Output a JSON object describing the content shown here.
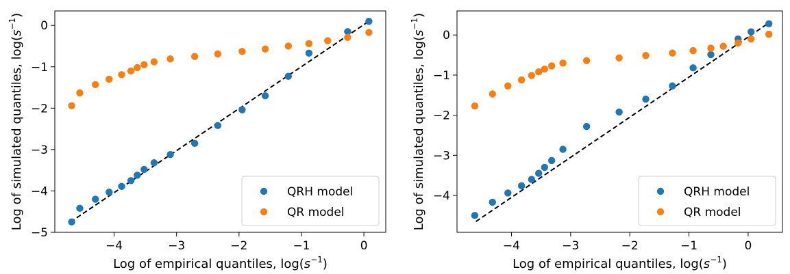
{
  "chart_data": [
    {
      "type": "scatter",
      "xlabel": "Log of empirical quantiles, log(s⁻¹)",
      "ylabel": "Log of simulated quantiles, log(s⁻¹)",
      "xlim": [
        -4.95,
        0.35
      ],
      "ylim": [
        -5.0,
        0.35
      ],
      "xticks": [
        -4,
        -3,
        -2,
        -1,
        0
      ],
      "yticks": [
        -5,
        -4,
        -3,
        -2,
        -1,
        0
      ],
      "grid": false,
      "legend_position": "bottom-right",
      "reference_line": {
        "style": "dashed",
        "color": "#000000",
        "x": [
          -4.7,
          0.08
        ],
        "y": [
          -4.75,
          0.1
        ]
      },
      "series": [
        {
          "name": "QRH model",
          "color": "#1f77b4",
          "x": [
            -4.68,
            -4.55,
            -4.3,
            -4.08,
            -3.88,
            -3.73,
            -3.63,
            -3.52,
            -3.36,
            -3.1,
            -2.71,
            -2.34,
            -1.95,
            -1.58,
            -1.21,
            -0.88,
            -0.26,
            0.08
          ],
          "y": [
            -4.75,
            -4.42,
            -4.2,
            -4.03,
            -3.89,
            -3.75,
            -3.62,
            -3.48,
            -3.32,
            -3.12,
            -2.85,
            -2.42,
            -2.04,
            -1.7,
            -1.23,
            -0.67,
            -0.15,
            0.1
          ]
        },
        {
          "name": "QR model",
          "color": "#ff7f0e",
          "x": [
            -4.68,
            -4.55,
            -4.3,
            -4.08,
            -3.88,
            -3.73,
            -3.63,
            -3.52,
            -3.36,
            -3.1,
            -2.71,
            -2.34,
            -1.95,
            -1.58,
            -1.21,
            -0.88,
            -0.58,
            -0.26,
            0.08
          ],
          "y": [
            -1.94,
            -1.63,
            -1.43,
            -1.3,
            -1.19,
            -1.1,
            -1.02,
            -0.95,
            -0.88,
            -0.81,
            -0.75,
            -0.69,
            -0.63,
            -0.57,
            -0.5,
            -0.44,
            -0.37,
            -0.29,
            -0.17
          ]
        }
      ]
    },
    {
      "type": "scatter",
      "xlabel": "Log of empirical quantiles, log(s⁻¹)",
      "ylabel": "Log of simulated quantiles, log(s⁻¹)",
      "xlim": [
        -4.92,
        0.58
      ],
      "ylim": [
        -4.92,
        0.6
      ],
      "xticks": [
        -4,
        -3,
        -2,
        -1,
        0
      ],
      "yticks": [
        -4,
        -3,
        -2,
        -1,
        0
      ],
      "grid": false,
      "legend_position": "bottom-right",
      "reference_line": {
        "style": "dashed",
        "color": "#000000",
        "x": [
          -4.6,
          0.35
        ],
        "y": [
          -4.65,
          0.3
        ]
      },
      "series": [
        {
          "name": "QRH model",
          "color": "#1f77b4",
          "x": [
            -4.62,
            -4.32,
            -4.06,
            -3.83,
            -3.66,
            -3.54,
            -3.44,
            -3.32,
            -3.13,
            -2.73,
            -2.18,
            -1.73,
            -1.28,
            -0.93,
            -0.63,
            -0.17,
            0.05,
            0.35
          ],
          "y": [
            -4.5,
            -4.17,
            -3.94,
            -3.76,
            -3.6,
            -3.45,
            -3.3,
            -3.13,
            -2.85,
            -2.28,
            -1.92,
            -1.6,
            -1.27,
            -0.82,
            -0.49,
            -0.1,
            0.08,
            0.28
          ]
        },
        {
          "name": "QR model",
          "color": "#ff7f0e",
          "x": [
            -4.62,
            -4.32,
            -4.06,
            -3.83,
            -3.66,
            -3.54,
            -3.44,
            -3.32,
            -3.13,
            -2.73,
            -2.18,
            -1.73,
            -1.28,
            -0.93,
            -0.63,
            -0.42,
            -0.17,
            0.05,
            0.35
          ],
          "y": [
            -1.77,
            -1.47,
            -1.27,
            -1.12,
            -1.01,
            -0.92,
            -0.85,
            -0.77,
            -0.7,
            -0.64,
            -0.57,
            -0.51,
            -0.45,
            -0.39,
            -0.33,
            -0.28,
            -0.2,
            -0.1,
            0.02
          ]
        }
      ]
    }
  ]
}
